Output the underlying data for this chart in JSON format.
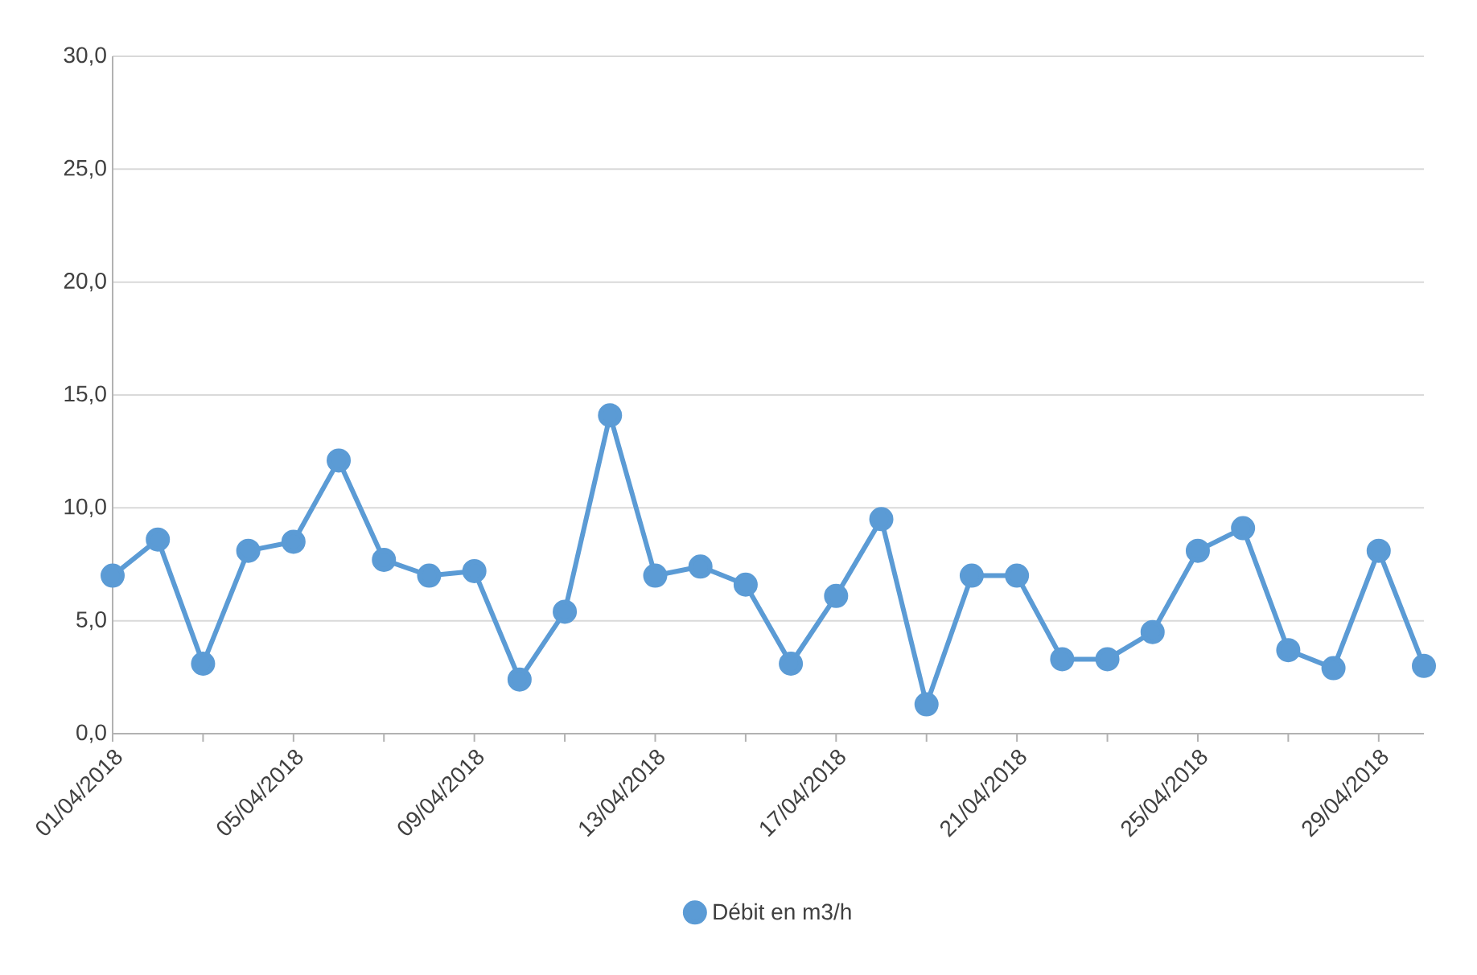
{
  "chart_data": {
    "type": "line",
    "x": [
      "2018-04-01",
      "2018-04-02",
      "2018-04-03",
      "2018-04-04",
      "2018-04-05",
      "2018-04-06",
      "2018-04-07",
      "2018-04-08",
      "2018-04-09",
      "2018-04-10",
      "2018-04-11",
      "2018-04-12",
      "2018-04-13",
      "2018-04-14",
      "2018-04-15",
      "2018-04-16",
      "2018-04-17",
      "2018-04-18",
      "2018-04-19",
      "2018-04-20",
      "2018-04-21",
      "2018-04-22",
      "2018-04-23",
      "2018-04-24",
      "2018-04-25",
      "2018-04-26",
      "2018-04-27",
      "2018-04-28",
      "2018-04-29",
      "2018-04-30"
    ],
    "series": [
      {
        "name": "Débit en m3/h",
        "color": "#5b9bd5",
        "values": [
          7.0,
          8.6,
          3.1,
          8.1,
          8.5,
          12.1,
          7.7,
          7.0,
          7.2,
          2.4,
          5.4,
          14.1,
          7.0,
          7.4,
          6.6,
          3.1,
          6.1,
          9.5,
          1.3,
          7.0,
          7.0,
          3.3,
          3.3,
          4.5,
          8.1,
          9.1,
          3.7,
          2.9,
          8.1,
          3.0
        ]
      }
    ],
    "xlim": [
      "2018-04-01",
      "2018-04-30"
    ],
    "xticks": [
      {
        "value": "2018-04-01",
        "label": "01/04/2018"
      },
      {
        "value": "2018-04-03",
        "label": null
      },
      {
        "value": "2018-04-05",
        "label": "05/04/2018"
      },
      {
        "value": "2018-04-07",
        "label": null
      },
      {
        "value": "2018-04-09",
        "label": "09/04/2018"
      },
      {
        "value": "2018-04-11",
        "label": null
      },
      {
        "value": "2018-04-13",
        "label": "13/04/2018"
      },
      {
        "value": "2018-04-15",
        "label": null
      },
      {
        "value": "2018-04-17",
        "label": "17/04/2018"
      },
      {
        "value": "2018-04-19",
        "label": null
      },
      {
        "value": "2018-04-21",
        "label": "21/04/2018"
      },
      {
        "value": "2018-04-23",
        "label": null
      },
      {
        "value": "2018-04-25",
        "label": "25/04/2018"
      },
      {
        "value": "2018-04-27",
        "label": null
      },
      {
        "value": "2018-04-29",
        "label": "29/04/2018"
      }
    ],
    "ylim": [
      0,
      30
    ],
    "yticks": [
      {
        "value": 0,
        "label": "0,0"
      },
      {
        "value": 5,
        "label": "5,0"
      },
      {
        "value": 10,
        "label": "10,0"
      },
      {
        "value": 15,
        "label": "15,0"
      },
      {
        "value": 20,
        "label": "20,0"
      },
      {
        "value": 25,
        "label": "25,0"
      },
      {
        "value": 30,
        "label": "30,0"
      }
    ],
    "grid": "y",
    "legend": "bottom",
    "marker": "circle",
    "line_style": "solid"
  }
}
